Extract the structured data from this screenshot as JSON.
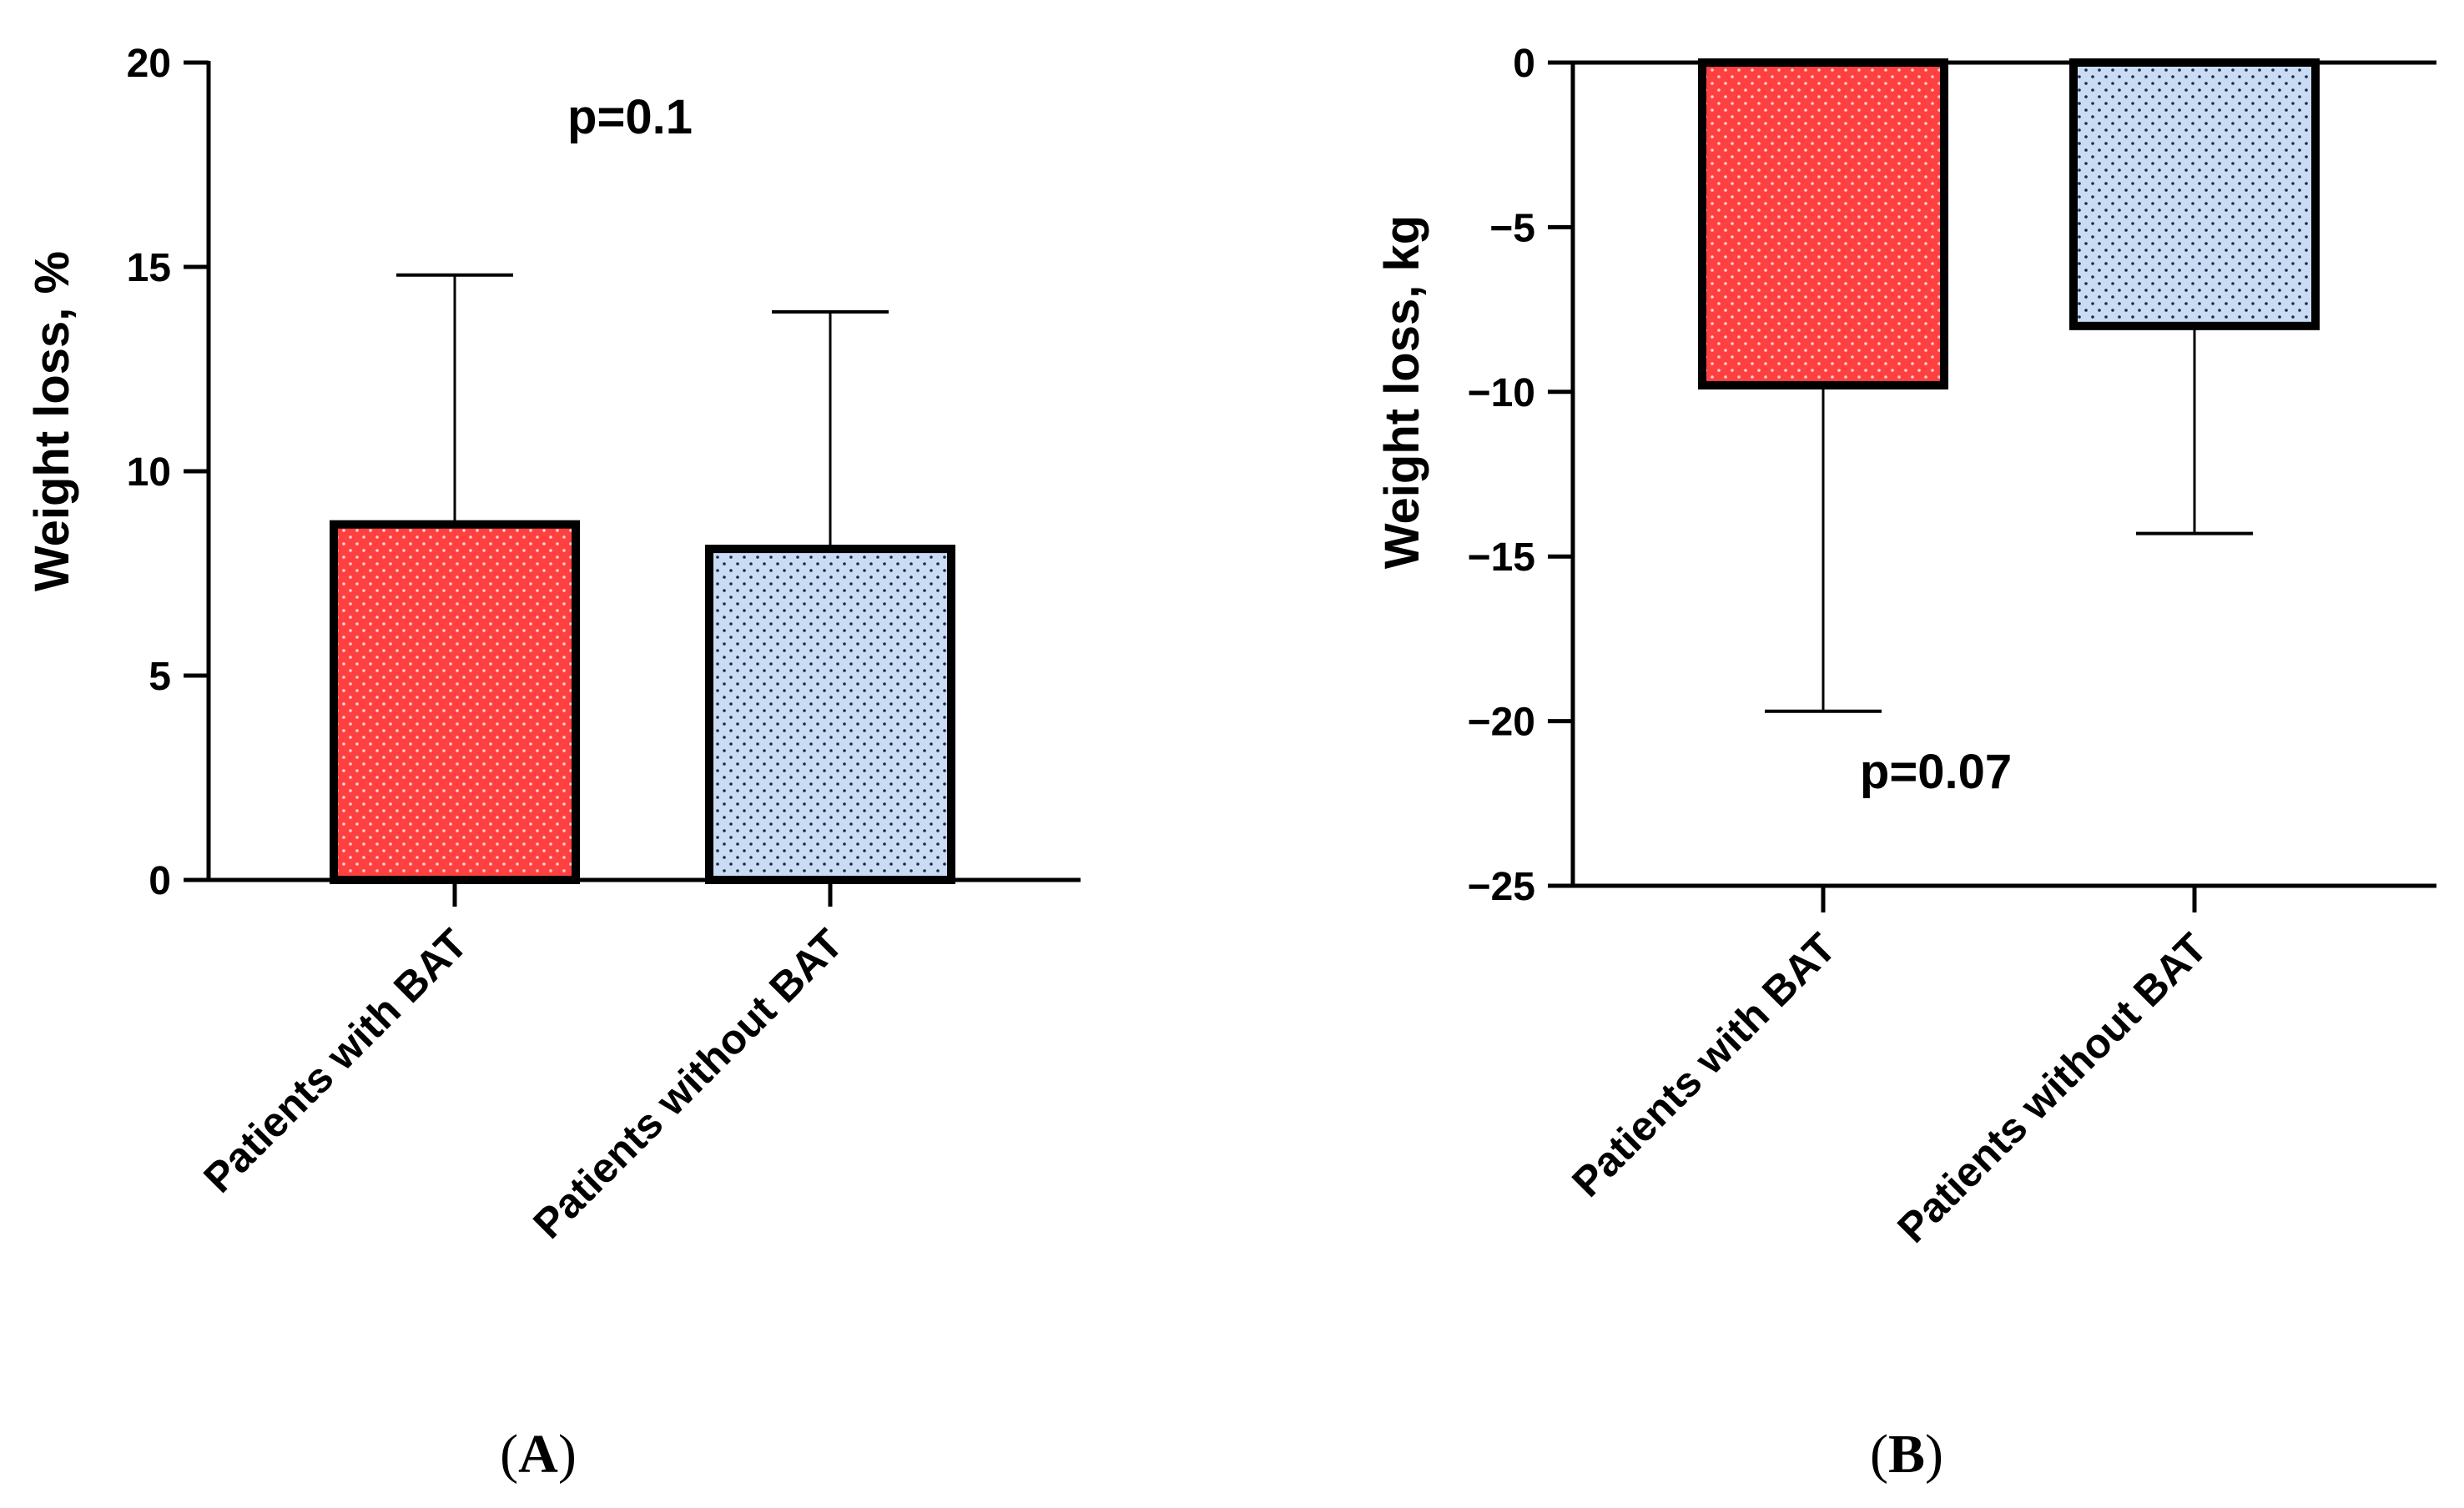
{
  "chart_data": [
    {
      "type": "bar",
      "panel": "A",
      "panel_label_open": "(",
      "panel_label_letter": "A",
      "panel_label_close": ")",
      "categories": [
        "Patients with BAT",
        "Patients without BAT"
      ],
      "values": [
        8.7,
        8.1
      ],
      "error_bars": [
        14.8,
        13.9
      ],
      "colors": [
        "#ff4040",
        "#c9dcf4"
      ],
      "ylabel": "Weight loss, %",
      "xlabel": "",
      "ylim": [
        0,
        20
      ],
      "yticks": [
        0,
        5,
        10,
        15,
        20
      ],
      "ytick_labels": [
        "0",
        "5",
        "10",
        "15",
        "20"
      ],
      "annotation": "p=0.1"
    },
    {
      "type": "bar",
      "panel": "B",
      "panel_label_open": "(",
      "panel_label_letter": "B",
      "panel_label_close": ")",
      "categories": [
        "Patients with BAT",
        "Patients without BAT"
      ],
      "values": [
        -9.8,
        -8.0
      ],
      "error_bars": [
        -19.7,
        -14.3
      ],
      "colors": [
        "#ff4040",
        "#c9dcf4"
      ],
      "ylabel": "Weight loss, kg",
      "xlabel": "",
      "ylim": [
        -25,
        0
      ],
      "yticks": [
        0,
        -5,
        -10,
        -15,
        -20,
        -25
      ],
      "ytick_labels": [
        "0",
        "−5",
        "−10",
        "−15",
        "−20",
        "−25"
      ],
      "annotation": "p=0.07"
    }
  ]
}
